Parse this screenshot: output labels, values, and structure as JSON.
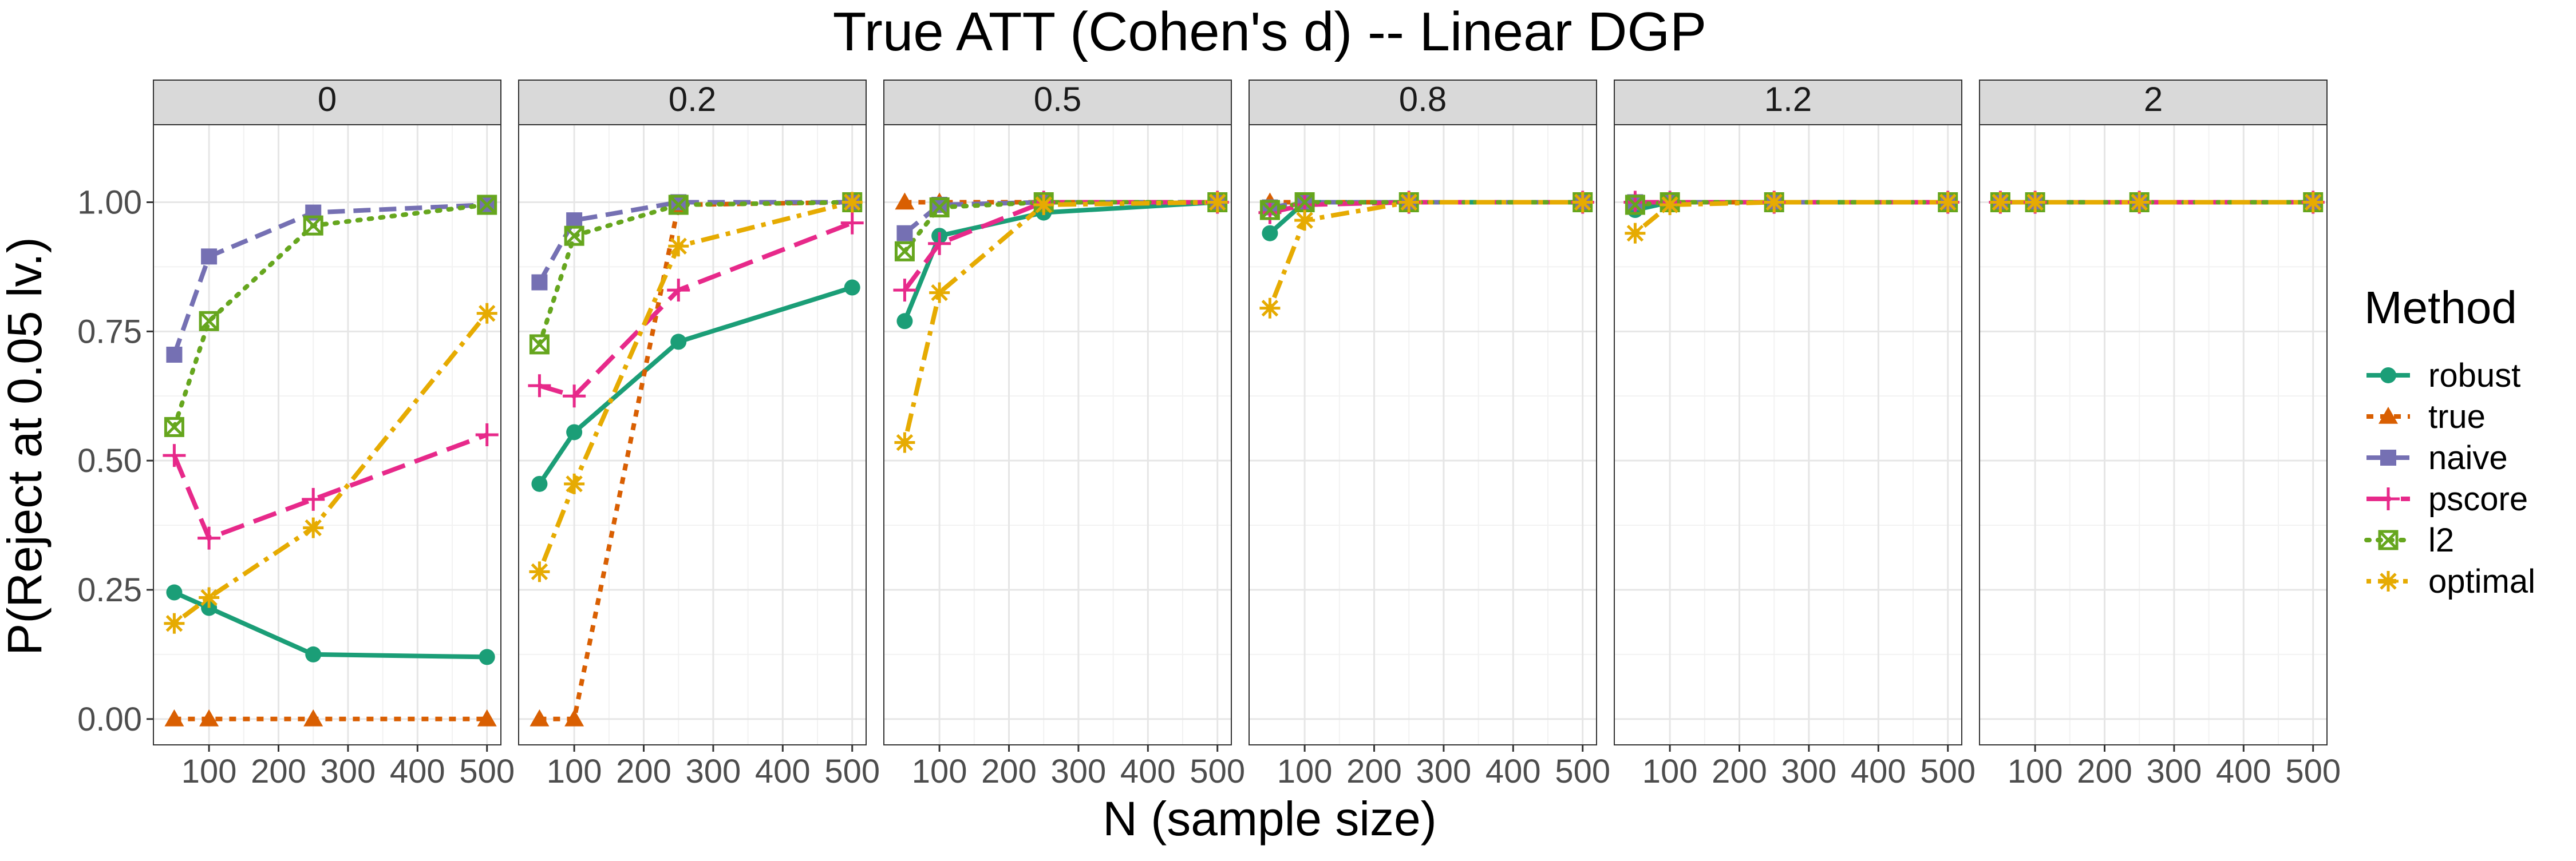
{
  "chart_data": {
    "type": "line",
    "title": "True ATT (Cohen's d) -- Linear DGP",
    "xlabel": "N (sample size)",
    "ylabel": "P(Reject at 0.05 lv.)",
    "x": [
      50,
      100,
      250,
      500
    ],
    "xlim": [
      20,
      520
    ],
    "ylim": [
      -0.05,
      1.15
    ],
    "xticks": [
      "100",
      "200",
      "300",
      "400",
      "500"
    ],
    "yticks": [
      "0.00",
      "0.25",
      "0.50",
      "0.75",
      "1.00"
    ],
    "grid": true,
    "legend": {
      "title": "Method",
      "placement": "right",
      "entries": [
        "robust",
        "true",
        "naive",
        "pscore",
        "l2",
        "optimal"
      ]
    },
    "series_styles": [
      {
        "name": "robust",
        "color": "#1b9e77",
        "marker": "circle",
        "dash": "solid"
      },
      {
        "name": "true",
        "color": "#d95f02",
        "marker": "triangle",
        "dash": "dotted"
      },
      {
        "name": "naive",
        "color": "#7570b3",
        "marker": "square",
        "dash": "dashed"
      },
      {
        "name": "pscore",
        "color": "#e7298a",
        "marker": "plus",
        "dash": "longdash"
      },
      {
        "name": "l2",
        "color": "#66a61e",
        "marker": "boxcross",
        "dash": "dots"
      },
      {
        "name": "optimal",
        "color": "#e6ab02",
        "marker": "asterisk",
        "dash": "dotdash"
      }
    ],
    "panels": [
      {
        "label": "0",
        "series": [
          {
            "name": "robust",
            "values": [
              0.245,
              0.215,
              0.125,
              0.12
            ]
          },
          {
            "name": "true",
            "values": [
              0.0,
              0.0,
              0.0,
              0.0
            ]
          },
          {
            "name": "naive",
            "values": [
              0.705,
              0.895,
              0.98,
              0.995
            ]
          },
          {
            "name": "pscore",
            "values": [
              0.51,
              0.35,
              0.425,
              0.55
            ]
          },
          {
            "name": "l2",
            "values": [
              0.565,
              0.77,
              0.955,
              0.995
            ]
          },
          {
            "name": "optimal",
            "values": [
              0.185,
              0.235,
              0.37,
              0.785
            ]
          }
        ]
      },
      {
        "label": "0.2",
        "series": [
          {
            "name": "robust",
            "values": [
              0.455,
              0.555,
              0.73,
              0.835
            ]
          },
          {
            "name": "true",
            "values": [
              0.0,
              0.0,
              0.995,
              1.0
            ]
          },
          {
            "name": "naive",
            "values": [
              0.845,
              0.965,
              1.0,
              1.0
            ]
          },
          {
            "name": "pscore",
            "values": [
              0.645,
              0.625,
              0.83,
              0.96
            ]
          },
          {
            "name": "l2",
            "values": [
              0.725,
              0.935,
              0.995,
              1.0
            ]
          },
          {
            "name": "optimal",
            "values": [
              0.285,
              0.455,
              0.915,
              1.0
            ]
          }
        ]
      },
      {
        "label": "0.5",
        "series": [
          {
            "name": "robust",
            "values": [
              0.77,
              0.935,
              0.98,
              1.0
            ]
          },
          {
            "name": "true",
            "values": [
              1.0,
              1.0,
              1.0,
              1.0
            ]
          },
          {
            "name": "naive",
            "values": [
              0.94,
              0.995,
              1.0,
              1.0
            ]
          },
          {
            "name": "pscore",
            "values": [
              0.83,
              0.92,
              1.0,
              1.0
            ]
          },
          {
            "name": "l2",
            "values": [
              0.905,
              0.99,
              1.0,
              1.0
            ]
          },
          {
            "name": "optimal",
            "values": [
              0.535,
              0.825,
              0.995,
              1.0
            ]
          }
        ]
      },
      {
        "label": "0.8",
        "series": [
          {
            "name": "robust",
            "values": [
              0.94,
              1.0,
              1.0,
              1.0
            ]
          },
          {
            "name": "true",
            "values": [
              1.0,
              1.0,
              1.0,
              1.0
            ]
          },
          {
            "name": "naive",
            "values": [
              0.99,
              1.0,
              1.0,
              1.0
            ]
          },
          {
            "name": "pscore",
            "values": [
              0.98,
              0.995,
              1.0,
              1.0
            ]
          },
          {
            "name": "l2",
            "values": [
              0.985,
              1.0,
              1.0,
              1.0
            ]
          },
          {
            "name": "optimal",
            "values": [
              0.795,
              0.965,
              1.0,
              1.0
            ]
          }
        ]
      },
      {
        "label": "1.2",
        "series": [
          {
            "name": "robust",
            "values": [
              0.985,
              1.0,
              1.0,
              1.0
            ]
          },
          {
            "name": "true",
            "values": [
              1.0,
              1.0,
              1.0,
              1.0
            ]
          },
          {
            "name": "naive",
            "values": [
              1.0,
              1.0,
              1.0,
              1.0
            ]
          },
          {
            "name": "pscore",
            "values": [
              1.0,
              1.0,
              1.0,
              1.0
            ]
          },
          {
            "name": "l2",
            "values": [
              0.995,
              1.0,
              1.0,
              1.0
            ]
          },
          {
            "name": "optimal",
            "values": [
              0.94,
              0.995,
              1.0,
              1.0
            ]
          }
        ]
      },
      {
        "label": "2",
        "series": [
          {
            "name": "robust",
            "values": [
              1.0,
              1.0,
              1.0,
              1.0
            ]
          },
          {
            "name": "true",
            "values": [
              1.0,
              1.0,
              1.0,
              1.0
            ]
          },
          {
            "name": "naive",
            "values": [
              1.0,
              1.0,
              1.0,
              1.0
            ]
          },
          {
            "name": "pscore",
            "values": [
              1.0,
              1.0,
              1.0,
              1.0
            ]
          },
          {
            "name": "l2",
            "values": [
              1.0,
              1.0,
              1.0,
              1.0
            ]
          },
          {
            "name": "optimal",
            "values": [
              1.0,
              1.0,
              1.0,
              1.0
            ]
          }
        ]
      }
    ]
  }
}
